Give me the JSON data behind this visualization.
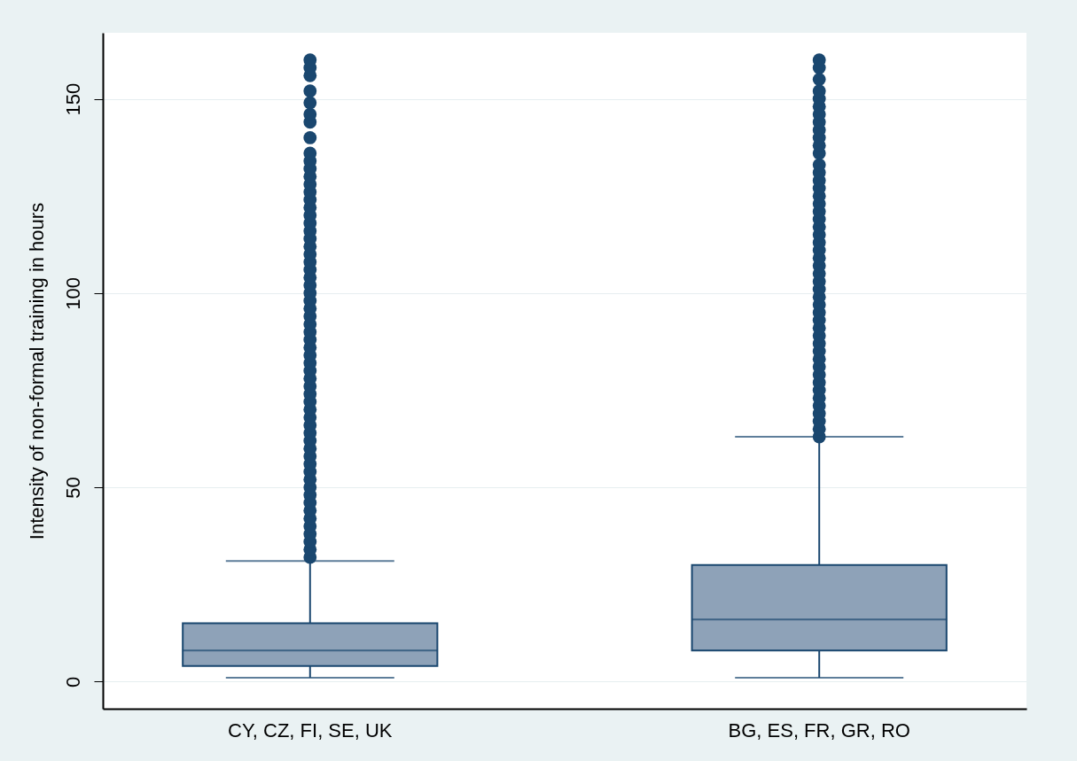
{
  "chart_data": {
    "type": "box",
    "categories": [
      "CY, CZ, FI, SE, UK",
      "BG, ES, FR, GR, RO"
    ],
    "ylabel": "Intensity of non-formal training in hours",
    "ylim": [
      -7,
      167
    ],
    "yticks": [
      0,
      50,
      100,
      150
    ],
    "grid": "y",
    "series": [
      {
        "color": "#8ea2b8",
        "boxes": [
          {
            "low": 1,
            "q1": 4,
            "median": 8,
            "q3": 15,
            "high": 31,
            "outliers": [
              32,
              34,
              36,
              38,
              40,
              42,
              44,
              46,
              48,
              50,
              52,
              54,
              56,
              58,
              60,
              62,
              64,
              66,
              68,
              70,
              72,
              74,
              76,
              78,
              80,
              82,
              84,
              86,
              88,
              90,
              92,
              94,
              96,
              98,
              100,
              102,
              104,
              106,
              108,
              110,
              112,
              114,
              116,
              118,
              120,
              122,
              124,
              126,
              128,
              130,
              132,
              134,
              136,
              140,
              144,
              146,
              149,
              152,
              156,
              158,
              160
            ]
          },
          {
            "low": 1,
            "q1": 8,
            "median": 16,
            "q3": 30,
            "high": 63,
            "outliers": [
              63,
              65,
              67,
              69,
              71,
              73,
              75,
              77,
              79,
              81,
              83,
              85,
              87,
              89,
              91,
              93,
              95,
              97,
              99,
              101,
              103,
              105,
              107,
              109,
              111,
              113,
              115,
              117,
              119,
              121,
              123,
              125,
              127,
              129,
              131,
              133,
              136,
              138,
              140,
              142,
              144,
              146,
              148,
              150,
              152,
              155,
              158,
              160
            ]
          }
        ]
      }
    ]
  }
}
